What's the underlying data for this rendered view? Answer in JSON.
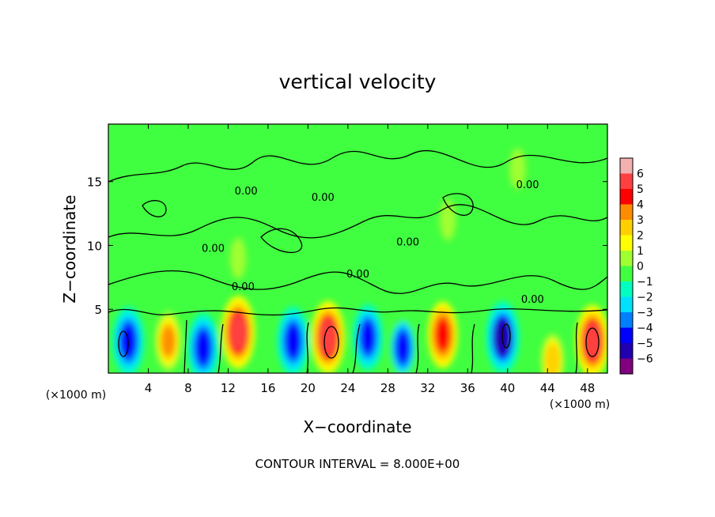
{
  "chart_data": {
    "type": "heatmap",
    "title": "vertical velocity",
    "xlabel": "X−coordinate",
    "ylabel": "Z−coordinate",
    "x_unit_left": "(×1000 m)",
    "x_unit_right": "(×1000 m)",
    "xlim": [
      0,
      50
    ],
    "ylim": [
      0,
      19.5
    ],
    "x_ticks": [
      "4",
      "8",
      "12",
      "16",
      "20",
      "24",
      "28",
      "32",
      "36",
      "40",
      "44",
      "48"
    ],
    "y_ticks": [
      "5",
      "10",
      "15"
    ],
    "footer": "CONTOUR INTERVAL = 8.000E+00",
    "colorbar": {
      "labels": [
        "6",
        "5",
        "4",
        "3",
        "2",
        "1",
        "0",
        "−1",
        "−2",
        "−3",
        "−4",
        "−5",
        "−6"
      ],
      "values": [
        6,
        5,
        4,
        3,
        2,
        1,
        0,
        -1,
        -2,
        -3,
        -4,
        -5,
        -6
      ],
      "colors": [
        "#f3b0b0",
        "#ff4040",
        "#ff0000",
        "#ff8c00",
        "#ffd000",
        "#ffff00",
        "#a0ff30",
        "#40ff40",
        "#00ffc0",
        "#00e0ff",
        "#0080ff",
        "#0000ff",
        "#2000b0",
        "#800080"
      ]
    },
    "contour_labels": [
      {
        "text": "0.00",
        "x": 10.5,
        "z": 9.5
      },
      {
        "text": "0.00",
        "x": 13.5,
        "z": 6.5
      },
      {
        "text": "0.00",
        "x": 13.8,
        "z": 14.0
      },
      {
        "text": "0.00",
        "x": 21.5,
        "z": 13.5
      },
      {
        "text": "0.00",
        "x": 25.0,
        "z": 7.5
      },
      {
        "text": "0.00",
        "x": 30.0,
        "z": 10.0
      },
      {
        "text": "0.00",
        "x": 42.5,
        "z": 5.5
      },
      {
        "text": "0.00",
        "x": 42.0,
        "z": 14.5
      }
    ],
    "cells": [
      {
        "x": 2,
        "z": 2.5,
        "w": -5.5
      },
      {
        "x": 6,
        "z": 2.5,
        "w": 4.0
      },
      {
        "x": 9.5,
        "z": 2.0,
        "w": -5.5
      },
      {
        "x": 13,
        "z": 3.2,
        "w": 6.0
      },
      {
        "x": 18.5,
        "z": 2.5,
        "w": -5.5
      },
      {
        "x": 22,
        "z": 2.8,
        "w": 6.0
      },
      {
        "x": 26,
        "z": 2.8,
        "w": -5.0
      },
      {
        "x": 29.5,
        "z": 2.0,
        "w": -4.5
      },
      {
        "x": 33.5,
        "z": 3.0,
        "w": 5.0
      },
      {
        "x": 39.5,
        "z": 2.8,
        "w": -6.0
      },
      {
        "x": 44.5,
        "z": 1.0,
        "w": 3.0
      },
      {
        "x": 48.5,
        "z": 2.5,
        "w": 6.0
      },
      {
        "x": 13,
        "z": 9.0,
        "w": 1.0
      },
      {
        "x": 34,
        "z": 12.0,
        "w": 1.0
      },
      {
        "x": 41,
        "z": 16.0,
        "w": 1.0
      }
    ]
  }
}
